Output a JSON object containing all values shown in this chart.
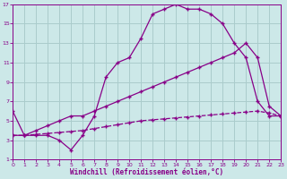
{
  "background_color": "#cce8e8",
  "grid_color": "#aacccc",
  "line_color": "#880088",
  "xlabel": "Windchill (Refroidissement éolien,°C)",
  "xlim": [
    0,
    23
  ],
  "ylim": [
    1,
    17
  ],
  "xticks": [
    0,
    1,
    2,
    3,
    4,
    5,
    6,
    7,
    8,
    9,
    10,
    11,
    12,
    13,
    14,
    15,
    16,
    17,
    18,
    19,
    20,
    21,
    22,
    23
  ],
  "yticks": [
    1,
    3,
    5,
    7,
    9,
    11,
    13,
    15,
    17
  ],
  "line1_x": [
    0,
    1,
    2,
    3,
    4,
    5,
    6,
    7,
    8,
    9,
    10,
    11,
    12,
    13,
    14,
    15,
    16,
    17,
    18,
    19,
    20,
    21,
    22,
    23
  ],
  "line1_y": [
    6.0,
    3.5,
    3.5,
    3.5,
    3.0,
    2.0,
    3.5,
    5.5,
    9.5,
    11.0,
    11.5,
    13.5,
    16.0,
    16.5,
    17.0,
    16.5,
    16.5,
    16.0,
    15.0,
    13.0,
    11.5,
    7.0,
    5.5,
    5.5
  ],
  "line2_x": [
    0,
    1,
    2,
    3,
    4,
    5,
    6,
    7,
    8,
    9,
    10,
    11,
    12,
    13,
    14,
    15,
    16,
    17,
    18,
    19,
    20,
    21,
    22,
    23
  ],
  "line2_y": [
    3.5,
    3.5,
    4.0,
    4.5,
    5.0,
    5.5,
    5.5,
    6.0,
    6.5,
    7.0,
    7.5,
    8.0,
    8.5,
    9.0,
    9.5,
    10.0,
    10.5,
    11.0,
    11.5,
    12.0,
    13.0,
    11.5,
    6.5,
    5.5
  ],
  "line3_x": [
    0,
    1,
    2,
    3,
    4,
    5,
    6,
    7,
    8,
    9,
    10,
    11,
    12,
    13,
    14,
    15,
    16,
    17,
    18,
    19,
    20,
    21,
    22,
    23
  ],
  "line3_y": [
    3.5,
    3.5,
    3.6,
    3.7,
    3.8,
    3.9,
    4.0,
    4.2,
    4.4,
    4.6,
    4.8,
    5.0,
    5.1,
    5.2,
    5.3,
    5.4,
    5.5,
    5.6,
    5.7,
    5.8,
    5.9,
    6.0,
    5.8,
    5.5
  ]
}
